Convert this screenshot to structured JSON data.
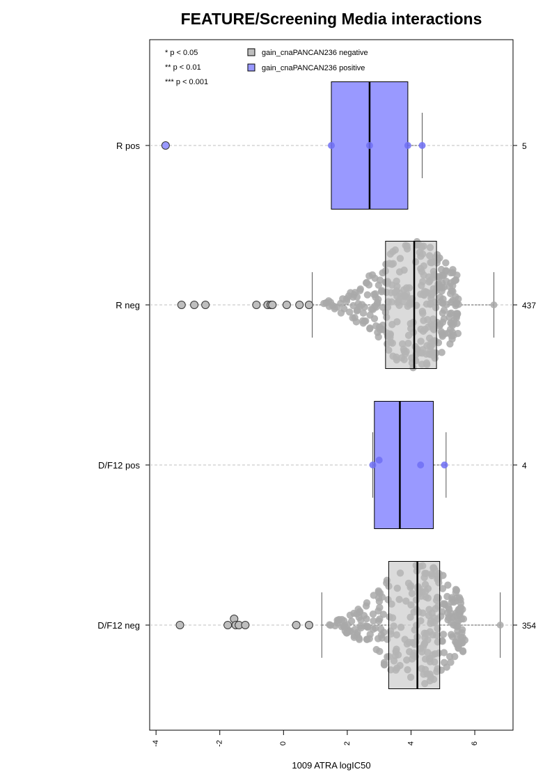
{
  "chart_data": {
    "type": "boxplot-beeswarm",
    "title": "FEATURE/Screening Media interactions",
    "xlabel": "1009 ATRA logIC50",
    "xlim": [
      -4.2,
      7.2
    ],
    "x_ticks": [
      -4,
      -2,
      0,
      2,
      4,
      6
    ],
    "x_tick_labels": [
      "-4",
      "-2",
      "0",
      "2",
      "4",
      "6"
    ],
    "significance_legend": [
      "* p < 0.05",
      "** p < 0.01",
      "*** p < 0.001"
    ],
    "legend": [
      {
        "label": "gain_cnaPANCAN236 negative",
        "color": "#bebebe"
      },
      {
        "label": "gain_cnaPANCAN236 positive",
        "color": "#9999ff"
      }
    ],
    "groups": [
      {
        "label": "R pos",
        "n_label": "5",
        "status": "positive",
        "whisker_low": 1.5,
        "q1": 1.5,
        "median": 2.7,
        "q3": 3.9,
        "whisker_high": 4.35,
        "outliers": [
          -3.7
        ],
        "points": [
          1.5,
          2.7,
          3.9,
          4.35
        ]
      },
      {
        "label": "R neg",
        "n_label": "437",
        "status": "negative",
        "whisker_low": 0.9,
        "q1": 3.2,
        "median": 4.1,
        "q3": 4.8,
        "whisker_high": 6.6,
        "outliers": [
          -3.2,
          -2.8,
          -2.45,
          -0.85,
          -0.5,
          -0.4,
          -0.35,
          0.1,
          0.5,
          0.8
        ],
        "points": [
          6.6
        ]
      },
      {
        "label": "D/F12 pos",
        "n_label": "4",
        "status": "positive",
        "whisker_low": 2.8,
        "q1": 2.85,
        "median": 3.65,
        "q3": 4.7,
        "whisker_high": 5.1,
        "outliers": [],
        "points": [
          2.8,
          3.0,
          4.3,
          5.05
        ]
      },
      {
        "label": "D/F12 neg",
        "n_label": "354",
        "status": "negative",
        "whisker_low": 1.2,
        "q1": 3.3,
        "median": 4.2,
        "q3": 4.9,
        "whisker_high": 6.8,
        "outliers": [
          -3.25,
          -1.75,
          -1.55,
          -1.5,
          -1.4,
          -1.2,
          0.4,
          0.8
        ],
        "points": [
          6.8
        ]
      }
    ],
    "colors": {
      "positive_box": "#9999ff",
      "positive_point": "#6f6ff5",
      "negative_box": "#bebebe",
      "negative_point": "#a9a9a9",
      "outlier_fill": "#bebebe",
      "gridline": "#bfbfbf"
    },
    "grid": "dashed horizontal line per group"
  }
}
